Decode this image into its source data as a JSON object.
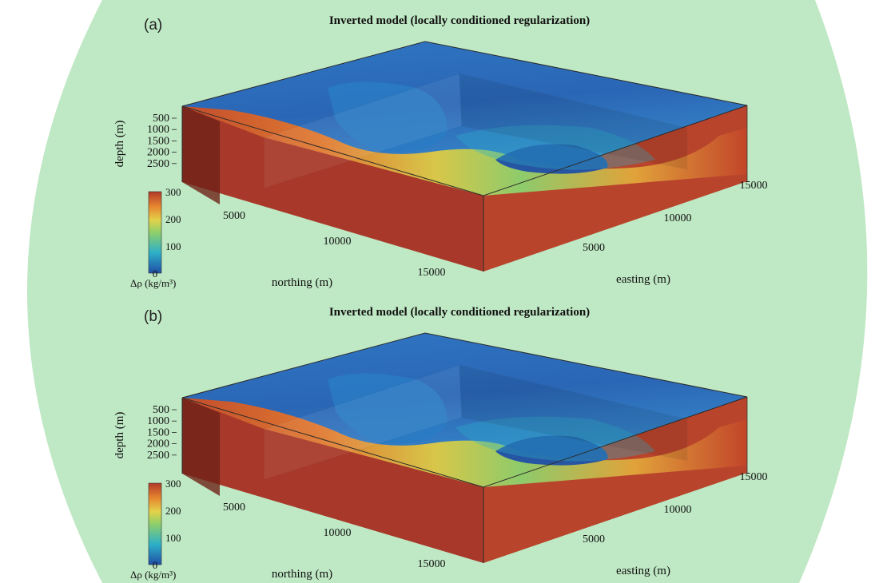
{
  "colors": {
    "background": "#bfe8c4",
    "high": "#b13a28",
    "mid_orange": "#e6852f",
    "mid_yellow": "#e2d24a",
    "mid_green": "#8fcf6a",
    "low_cyan": "#2db0c8",
    "low_blue": "#1f4fa6"
  },
  "panels": [
    {
      "label": "(a)",
      "chart_data": {
        "type": "heatmap",
        "subtype": "3d-block-model",
        "title": "Inverted model (locally conditioned regularization)",
        "northing_label": "northing (m)",
        "easting_label": "easting (m)",
        "depth_label": "depth (m)",
        "northing_ticks": [
          "5000",
          "10000",
          "15000"
        ],
        "easting_ticks": [
          "5000",
          "10000",
          "15000"
        ],
        "depth_ticks": [
          "500",
          "1000",
          "1500",
          "2000",
          "2500"
        ],
        "colorbar": {
          "label": "Δρ (kg/m³)",
          "ticks": [
            "0",
            "100",
            "200",
            "300"
          ],
          "range": [
            0,
            300
          ]
        }
      }
    },
    {
      "label": "(b)",
      "chart_data": {
        "type": "heatmap",
        "subtype": "3d-block-model",
        "title": "Inverted model (locally conditioned regularization)",
        "northing_label": "northing (m)",
        "easting_label": "easting (m)",
        "depth_label": "depth (m)",
        "northing_ticks": [
          "5000",
          "10000",
          "15000"
        ],
        "easting_ticks": [
          "5000",
          "10000",
          "15000"
        ],
        "depth_ticks": [
          "500",
          "1000",
          "1500",
          "2000",
          "2500"
        ],
        "colorbar": {
          "label": "Δρ (kg/m³)",
          "ticks": [
            "0",
            "100",
            "200",
            "300"
          ],
          "range": [
            0,
            300
          ]
        }
      }
    }
  ]
}
